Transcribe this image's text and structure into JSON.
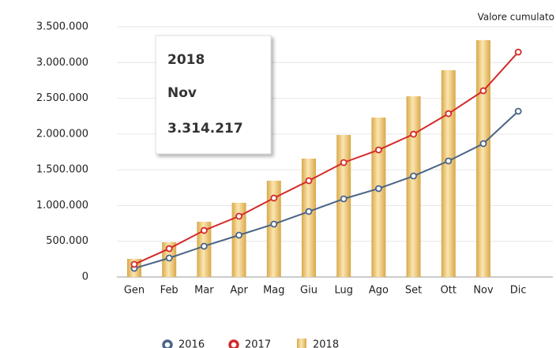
{
  "chart_data": {
    "type": "bar_line",
    "title": "Valore cumulato",
    "categories": [
      "Gen",
      "Feb",
      "Mar",
      "Apr",
      "Mag",
      "Giu",
      "Lug",
      "Ago",
      "Set",
      "Ott",
      "Nov",
      "Dic"
    ],
    "series": [
      {
        "name": "2016",
        "type": "line",
        "color": "#4a6487",
        "values": [
          121000,
          265000,
          431000,
          585000,
          740000,
          916000,
          1093000,
          1237000,
          1413000,
          1623000,
          1866000,
          2319000
        ]
      },
      {
        "name": "2017",
        "type": "line",
        "color": "#d42a2a",
        "values": [
          177000,
          397000,
          651000,
          850000,
          1104000,
          1347000,
          1601000,
          1778000,
          1998000,
          2285000,
          2606000,
          3147000
        ]
      },
      {
        "name": "2018",
        "type": "bar",
        "color": "#d9a84a",
        "values": [
          254000,
          486000,
          773000,
          1038000,
          1347000,
          1656000,
          1987000,
          2230000,
          2528000,
          2893000,
          3314217,
          null
        ]
      }
    ],
    "ylim": [
      0,
      3500000
    ],
    "yticks": [
      0,
      {
        "value": 500000,
        "label": "500.000"
      },
      {
        "value": 1000000,
        "label": "1.000.000"
      },
      {
        "value": 1500000,
        "label": "1.500.000"
      },
      {
        "value": 2000000,
        "label": "2.000.000"
      },
      {
        "value": 2500000,
        "label": "2.500.000"
      },
      {
        "value": 3000000,
        "label": "3.000.000"
      },
      {
        "value": 3500000,
        "label": "3.500.000"
      }
    ],
    "grid": true,
    "legend": "bottom",
    "tooltip": {
      "series": "2018",
      "category": "Nov",
      "value": "3.314.217"
    }
  }
}
